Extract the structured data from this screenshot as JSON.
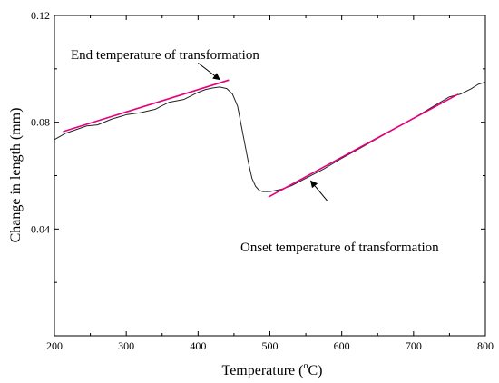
{
  "chart_data": {
    "type": "line",
    "xlabel": "Temperature (",
    "xlabel_sup": "o",
    "xlabel_unit": "C)",
    "ylabel": "Change in length (mm)",
    "xlim": [
      200,
      800
    ],
    "ylim": [
      0.0,
      0.12
    ],
    "x_ticks": [
      200,
      300,
      400,
      500,
      600,
      700,
      800
    ],
    "y_ticks": [
      0.04,
      0.08,
      0.12
    ],
    "y_tick_labels": [
      "0.04",
      "0.08",
      "0.12"
    ],
    "grid": false,
    "legend": false,
    "series": [
      {
        "color": "#222222",
        "points": [
          [
            200,
            0.0735
          ],
          [
            215,
            0.0758
          ],
          [
            230,
            0.0772
          ],
          [
            245,
            0.0786
          ],
          [
            260,
            0.079
          ],
          [
            280,
            0.0812
          ],
          [
            300,
            0.0828
          ],
          [
            320,
            0.0836
          ],
          [
            340,
            0.0848
          ],
          [
            350,
            0.0862
          ],
          [
            360,
            0.0875
          ],
          [
            380,
            0.0885
          ],
          [
            400,
            0.0912
          ],
          [
            410,
            0.0922
          ],
          [
            420,
            0.0928
          ],
          [
            430,
            0.0932
          ],
          [
            440,
            0.0926
          ],
          [
            448,
            0.0905
          ],
          [
            455,
            0.086
          ],
          [
            460,
            0.079
          ],
          [
            465,
            0.072
          ],
          [
            470,
            0.065
          ],
          [
            475,
            0.059
          ],
          [
            480,
            0.056
          ],
          [
            485,
            0.0545
          ],
          [
            490,
            0.054
          ],
          [
            500,
            0.054
          ],
          [
            515,
            0.0548
          ],
          [
            530,
            0.0562
          ],
          [
            550,
            0.059
          ],
          [
            575,
            0.0625
          ],
          [
            600,
            0.0665
          ],
          [
            625,
            0.0702
          ],
          [
            650,
            0.074
          ],
          [
            675,
            0.0778
          ],
          [
            700,
            0.0815
          ],
          [
            725,
            0.0855
          ],
          [
            750,
            0.0895
          ],
          [
            765,
            0.0905
          ],
          [
            780,
            0.0925
          ],
          [
            790,
            0.0942
          ],
          [
            800,
            0.095
          ]
        ]
      }
    ],
    "tangent_lines": [
      {
        "color": "#e6007e",
        "points": [
          [
            212,
            0.0765
          ],
          [
            443,
            0.0958
          ]
        ]
      },
      {
        "color": "#e6007e",
        "points": [
          [
            498,
            0.052
          ],
          [
            762,
            0.0905
          ]
        ]
      }
    ],
    "annotations": [
      {
        "text": "End temperature of transformation",
        "arrow_from": [
          400,
          0.1022
        ],
        "arrow_to": [
          430,
          0.096
        ]
      },
      {
        "text": "Onset temperature of transformation",
        "arrow_from": [
          580,
          0.0505
        ],
        "arrow_to": [
          557,
          0.058
        ]
      }
    ]
  }
}
